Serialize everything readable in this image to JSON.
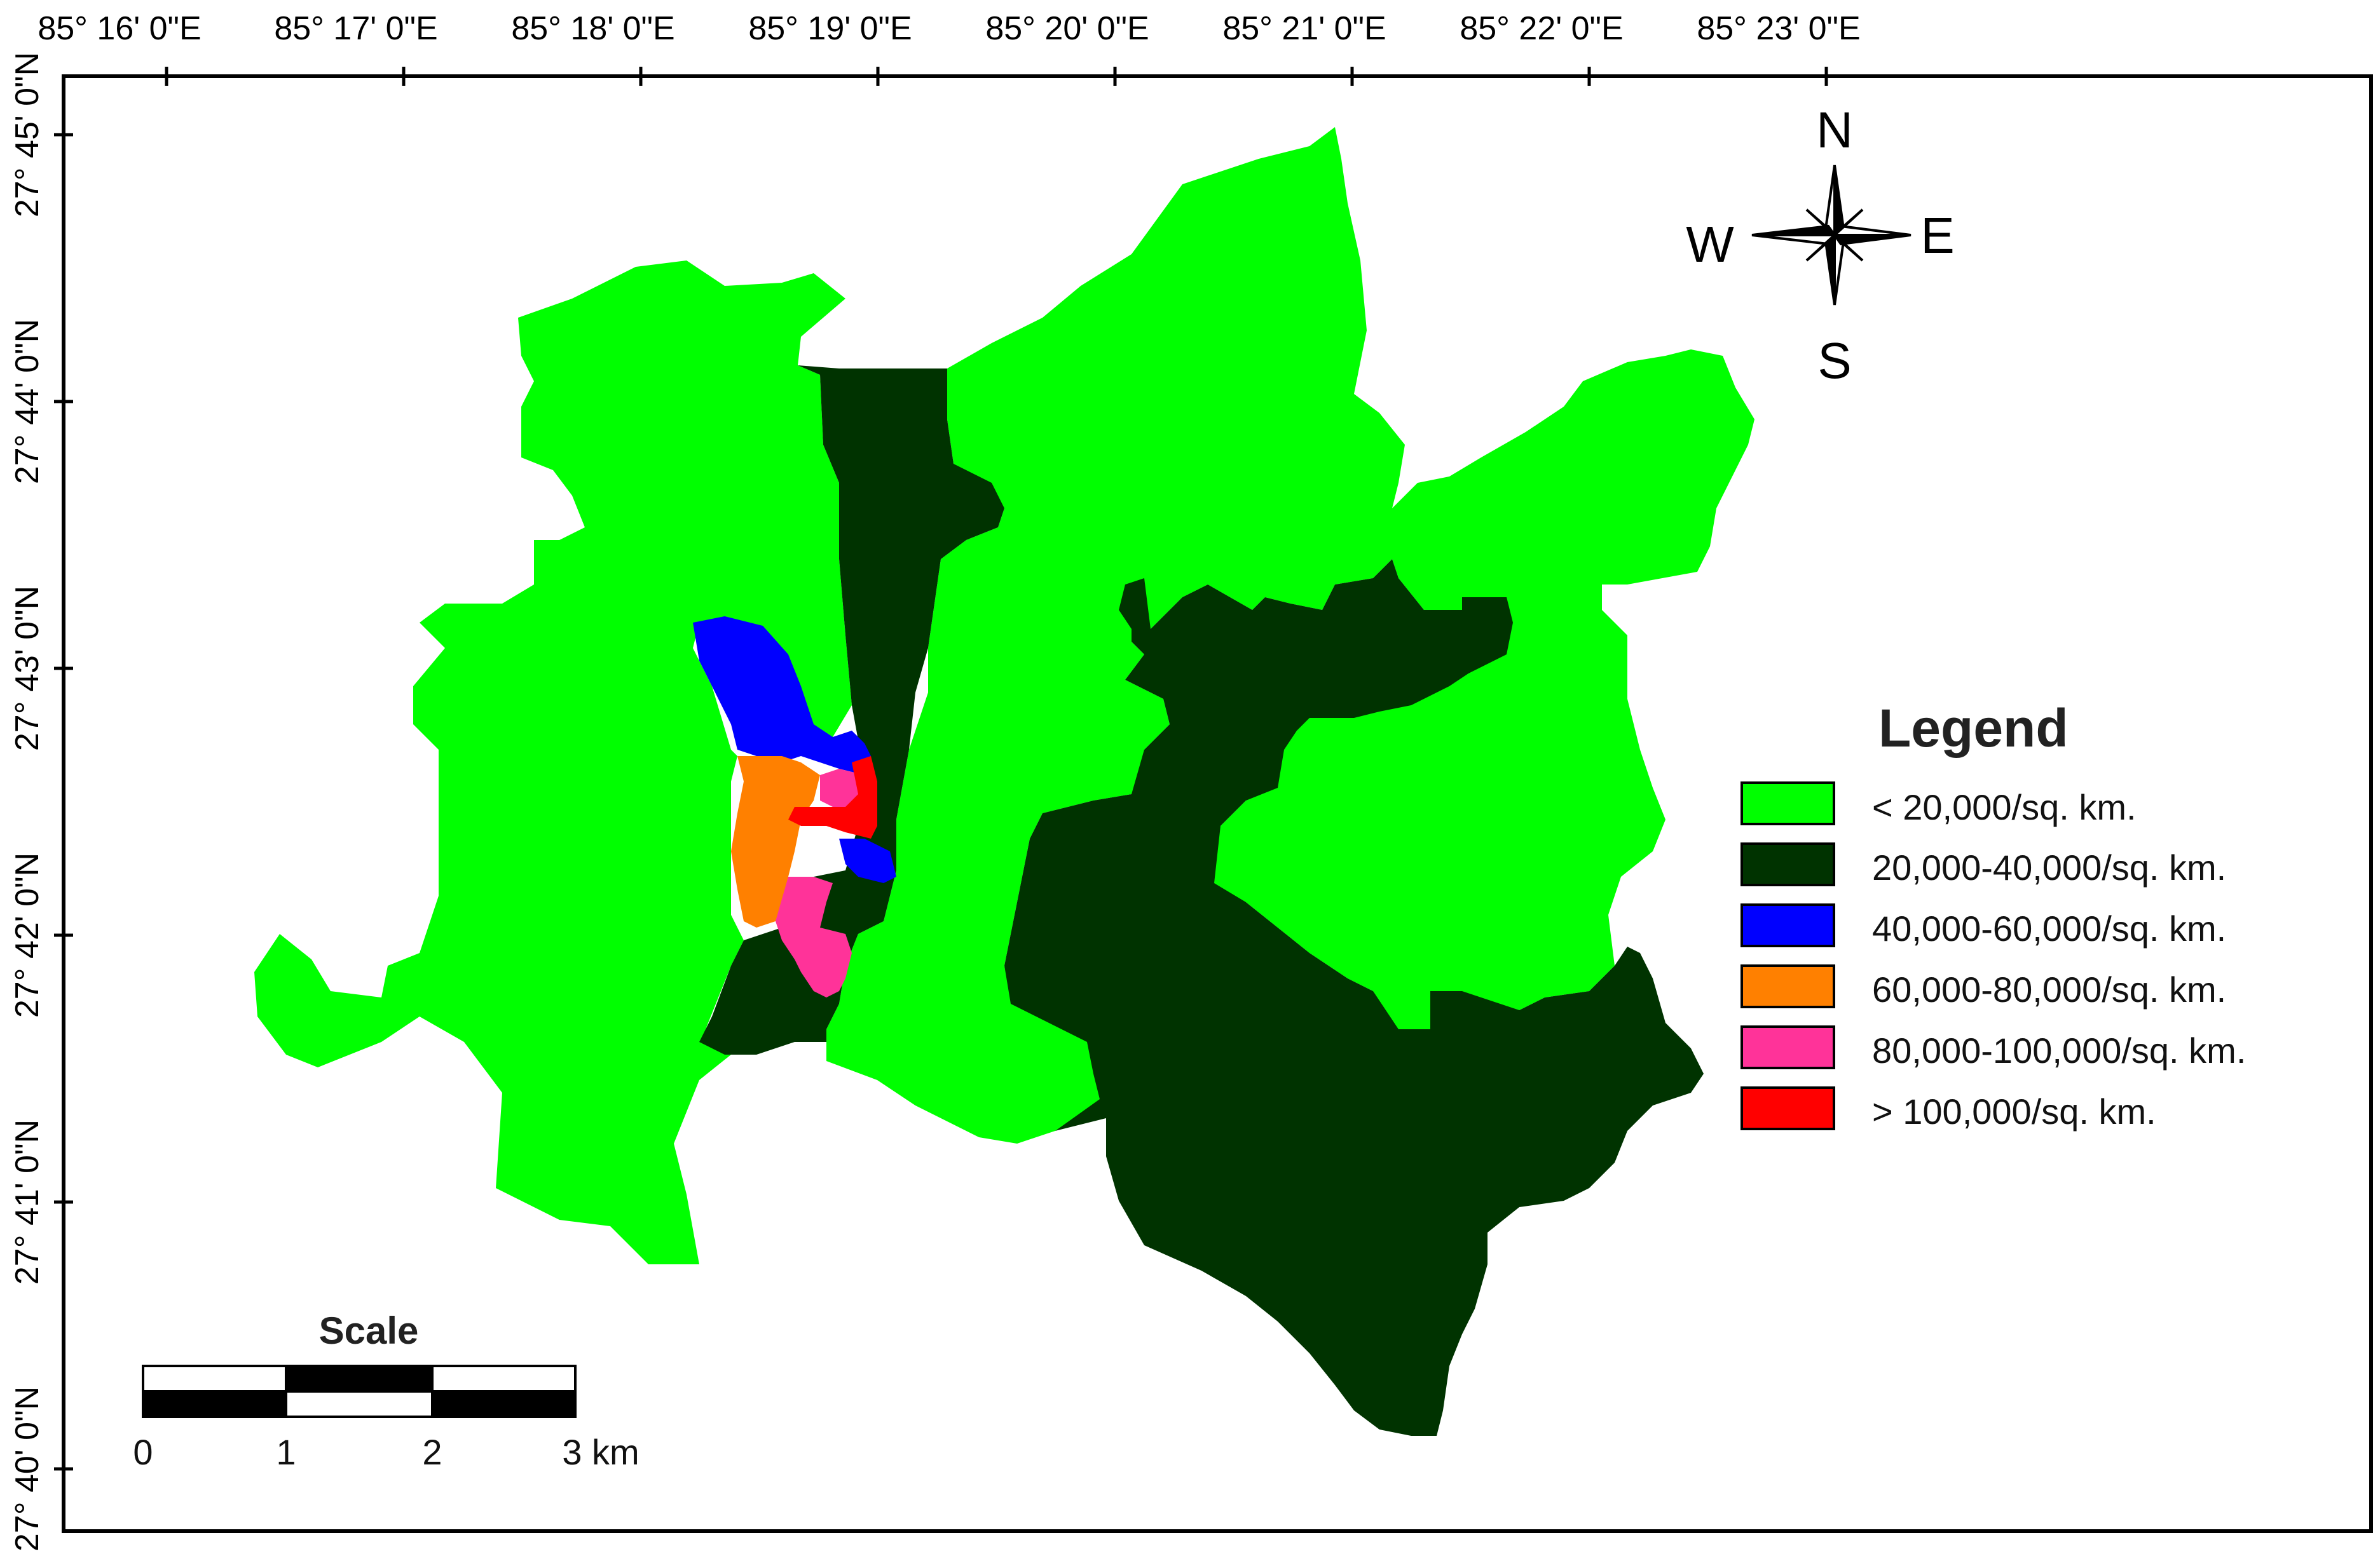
{
  "colors": {
    "class_lt20k": "#00ff00",
    "class_20_40k": "#003300",
    "class_40_60k": "#0000ff",
    "class_60_80k": "#ff8000",
    "class_80_100k": "#ff3399",
    "class_gt100k": "#ff0000"
  },
  "longitude_labels": [
    "85° 16' 0\"E",
    "85° 17' 0\"E",
    "85° 18' 0\"E",
    "85° 19' 0\"E",
    "85° 20' 0\"E",
    "85° 21' 0\"E",
    "85° 22' 0\"E",
    "85° 23' 0\"E"
  ],
  "latitude_labels": [
    "27° 45' 0\"N",
    "27° 44' 0\"N",
    "27° 43' 0\"N",
    "27° 42' 0\"N",
    "27° 41' 0\"N",
    "27° 40' 0\"N"
  ],
  "compass": {
    "north": "N",
    "south": "S",
    "east": "E",
    "west": "W"
  },
  "legend": {
    "title": "Legend",
    "items": [
      {
        "label": "< 20,000/sq. km.",
        "color": "#00ff00"
      },
      {
        "label": "20,000-40,000/sq. km.",
        "color": "#003300"
      },
      {
        "label": "40,000-60,000/sq. km.",
        "color": "#0000ff"
      },
      {
        "label": "60,000-80,000/sq. km.",
        "color": "#ff8000"
      },
      {
        "label": "80,000-100,000/sq. km.",
        "color": "#ff3399"
      },
      {
        "label": "> 100,000/sq. km.",
        "color": "#ff0000"
      }
    ]
  },
  "scale": {
    "title": "Scale",
    "ticks": [
      "0",
      "1",
      "2",
      "3 km"
    ]
  }
}
